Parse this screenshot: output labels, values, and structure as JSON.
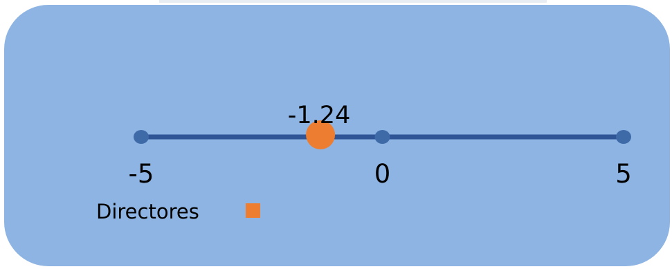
{
  "colors": {
    "panel": "#8eb4e3",
    "axis_line": "#2f5597",
    "axis_marker": "#3e6aa8",
    "point": "#ed7d31",
    "text": "#000000"
  },
  "chart_data": {
    "type": "scatter",
    "xlim": [
      -5,
      5
    ],
    "ticks": [
      -5,
      0,
      5
    ],
    "tick_labels": [
      "-5",
      "0",
      "5"
    ],
    "points": [
      {
        "x": -1.24,
        "label": "-1.24",
        "series": "Directores"
      }
    ],
    "legend": {
      "entries": [
        {
          "name": "Directores",
          "color": "#ed7d31",
          "marker": "square"
        }
      ],
      "placement": "bottom-left"
    },
    "title": "",
    "xlabel": "",
    "ylabel": ""
  }
}
